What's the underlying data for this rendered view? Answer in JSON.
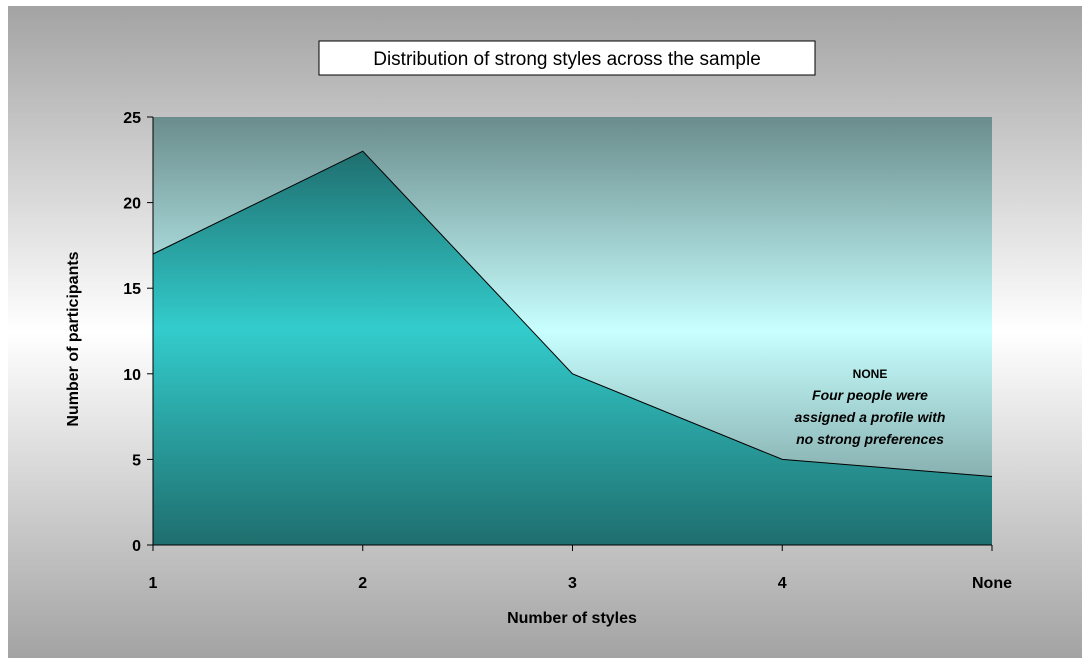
{
  "chart_data": {
    "type": "area",
    "title": "Distribution of strong styles across the sample",
    "xlabel": "Number of styles",
    "ylabel": "Number of participants",
    "categories": [
      "1",
      "2",
      "3",
      "4",
      "None"
    ],
    "values": [
      17,
      23,
      10,
      5,
      4
    ],
    "ylim": [
      0,
      25
    ],
    "yticks": [
      0,
      5,
      10,
      15,
      20,
      25
    ],
    "grid": false,
    "legend": "none",
    "annotation": {
      "heading": "NONE",
      "lines": [
        "Four  people were",
        "assigned a profile with",
        "no strong preferences"
      ]
    },
    "colors": {
      "area_dark": "#1f6e6e",
      "area_light": "#33cccc",
      "plot_top": "#6e9090",
      "plot_mid": "#c8ffff",
      "background_outer": "#a6a6a6",
      "background_inner": "#ffffff"
    }
  }
}
